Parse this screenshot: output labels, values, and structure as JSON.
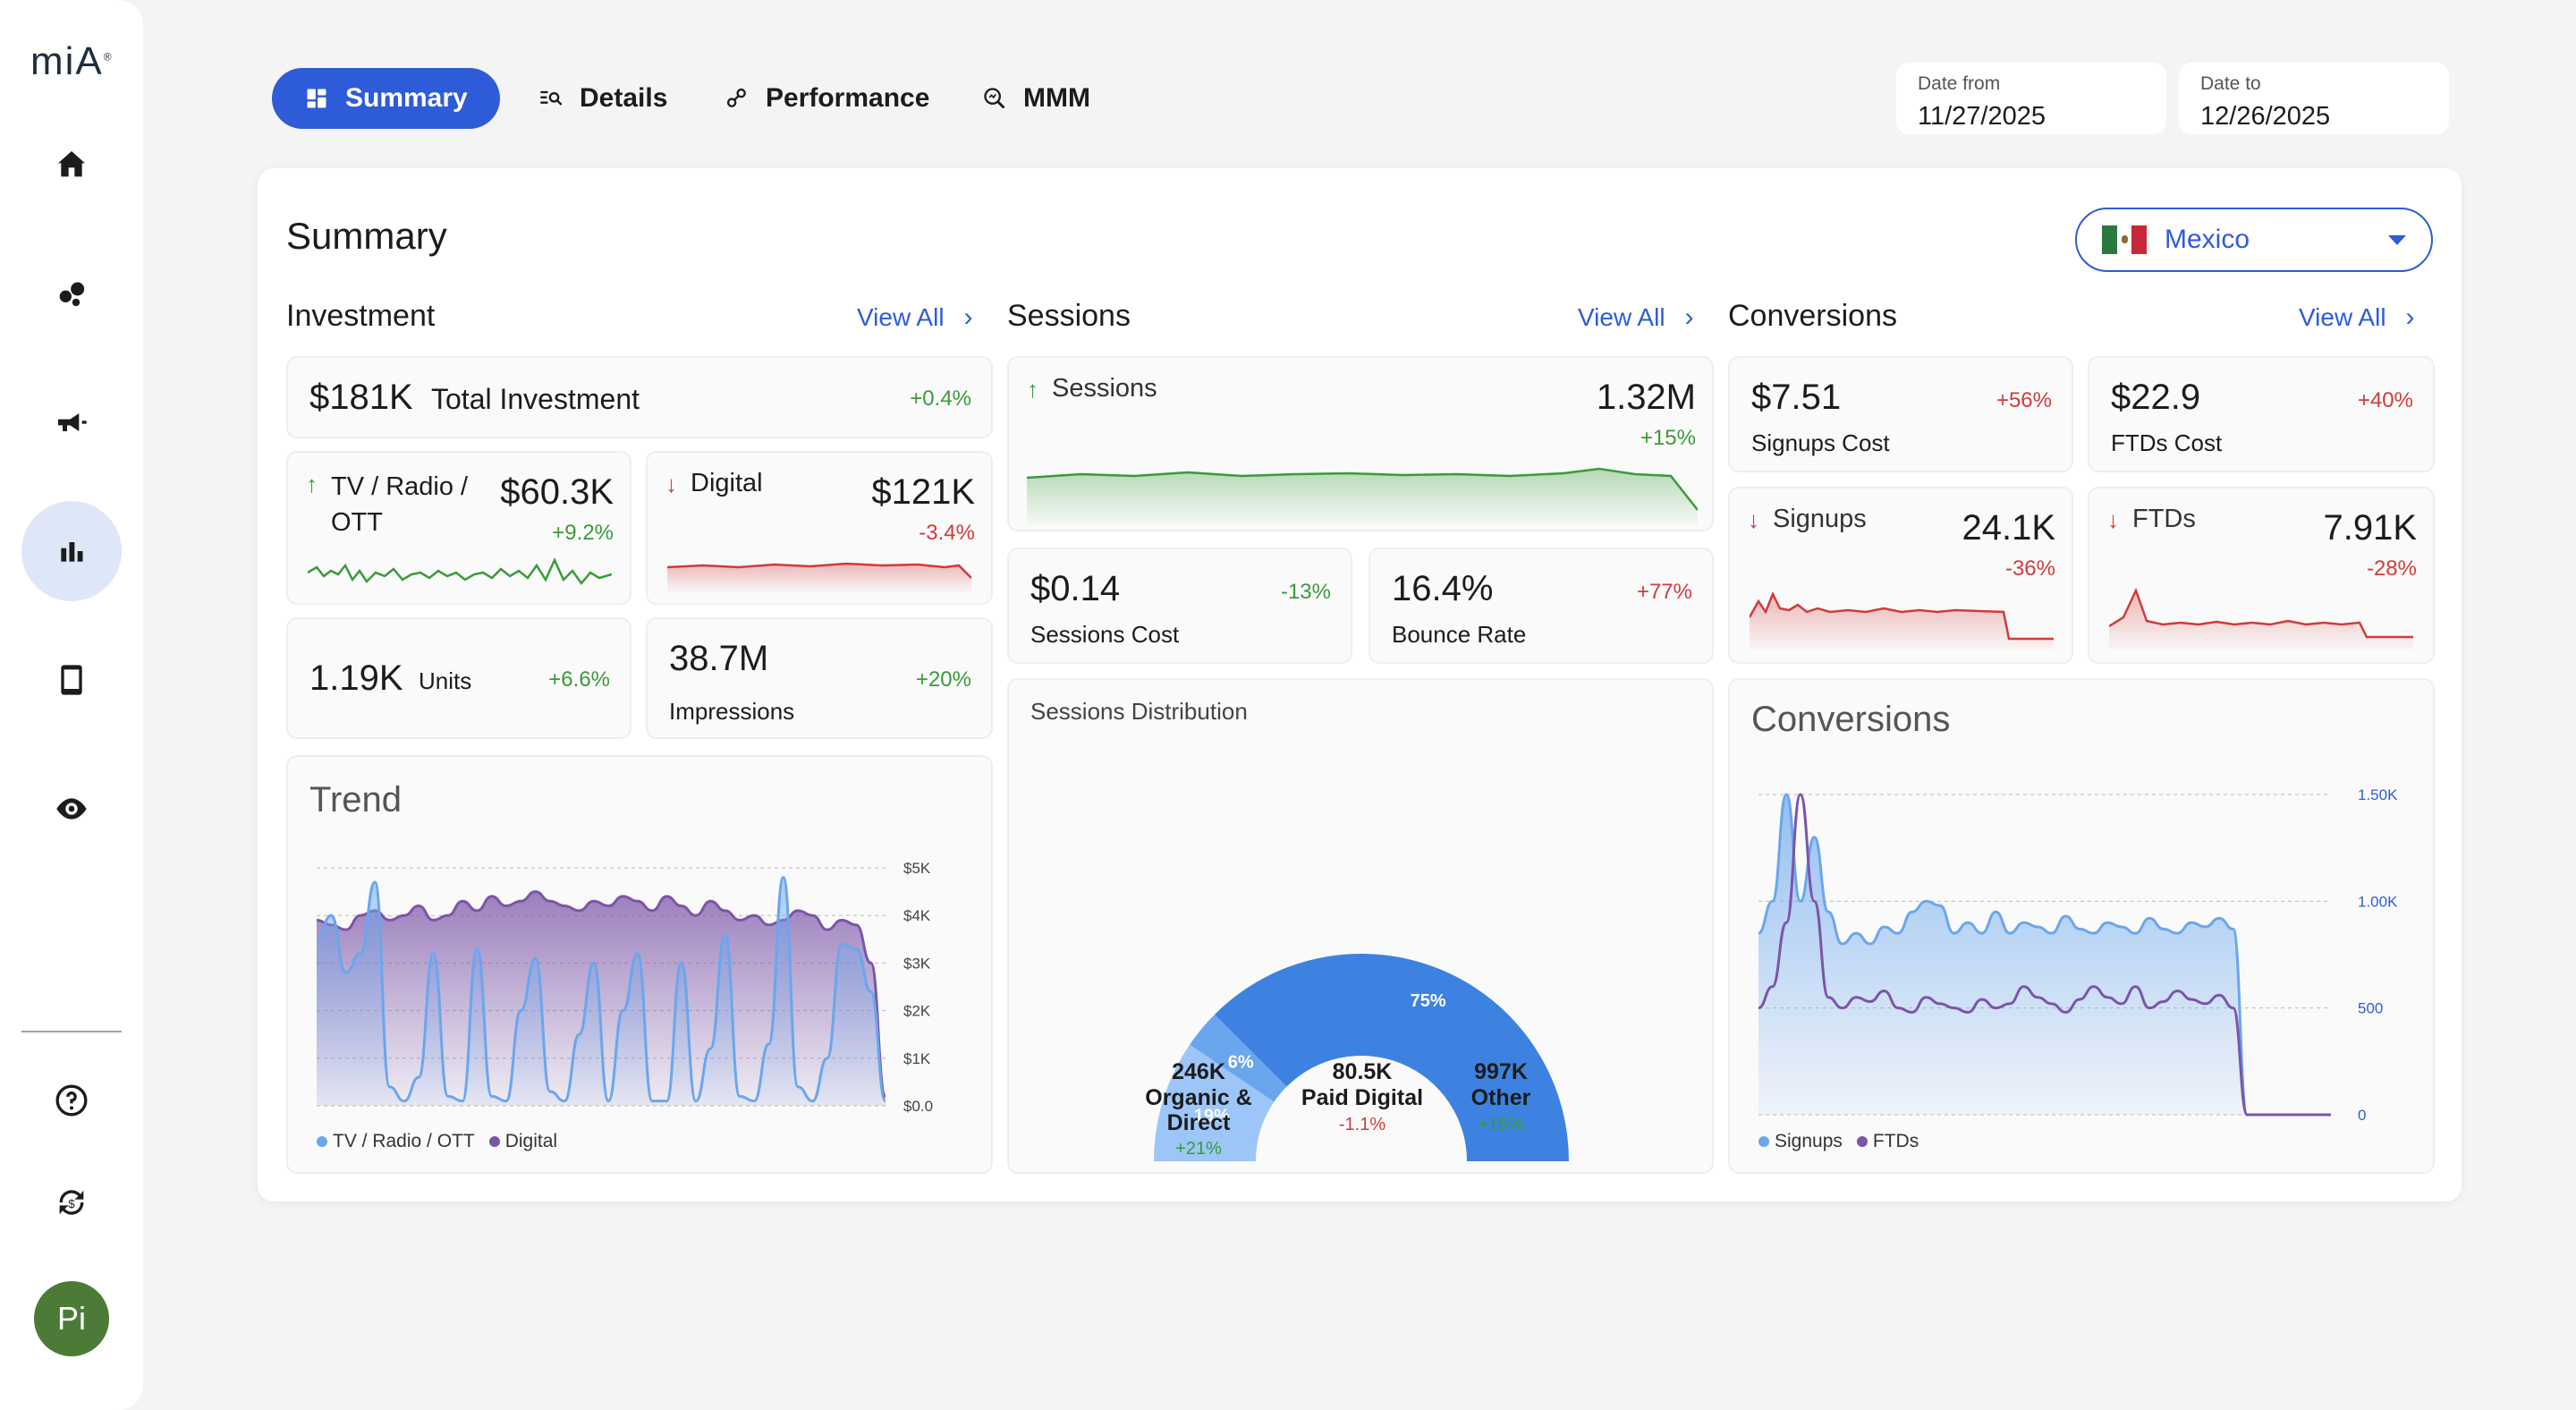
{
  "sidebar": {
    "logo": "miA",
    "icons": [
      "home-icon",
      "bubbles-icon",
      "megaphone-icon",
      "bar-chart-icon",
      "phone-icon",
      "eye-icon",
      "help-icon",
      "sync-icon"
    ],
    "avatar": "Pi"
  },
  "tabs": [
    {
      "label": "Summary",
      "icon": "dashboard-icon"
    },
    {
      "label": "Details",
      "icon": "list-search-icon"
    },
    {
      "label": "Performance",
      "icon": "nodes-icon"
    },
    {
      "label": "MMM",
      "icon": "magnifier-icon"
    }
  ],
  "date_from": {
    "label": "Date from",
    "value": "11/27/2025"
  },
  "date_to": {
    "label": "Date to",
    "value": "12/26/2025"
  },
  "panel": {
    "title": "Summary",
    "country": "Mexico"
  },
  "view_all": "View All",
  "investment": {
    "title": "Investment",
    "total_value": "$181K",
    "total_label": "Total Investment",
    "total_change": "+0.4%",
    "tv_label": "TV / Radio / OTT",
    "tv_value": "$60.3K",
    "tv_change": "+9.2%",
    "digital_label": "Digital",
    "digital_value": "$121K",
    "digital_change": "-3.4%",
    "units_value": "1.19K",
    "units_label": "Units",
    "units_change": "+6.6%",
    "impr_value": "38.7M",
    "impr_label": "Impressions",
    "impr_change": "+20%"
  },
  "sessions": {
    "title": "Sessions",
    "sessions_label": "Sessions",
    "sessions_value": "1.32M",
    "sessions_change": "+15%",
    "cost_value": "$0.14",
    "cost_label": "Sessions Cost",
    "cost_change": "-13%",
    "bounce_value": "16.4%",
    "bounce_label": "Bounce Rate",
    "bounce_change": "+77%",
    "dist_title": "Sessions Distribution",
    "dist": [
      {
        "value": "246K",
        "label": "Organic &\nDirect",
        "change": "+21%",
        "pct": "19%",
        "share": 19,
        "color": "#9cc6f7"
      },
      {
        "value": "80.5K",
        "label": "Paid Digital",
        "change": "-1.1%",
        "pct": "6%",
        "share": 6,
        "color": "#6aa6ee"
      },
      {
        "value": "997K",
        "label": "Other",
        "change": "+15%",
        "pct": "75%",
        "share": 75,
        "color": "#3d82e0"
      }
    ]
  },
  "conversions": {
    "title": "Conversions",
    "signups_cost_value": "$7.51",
    "signups_cost_label": "Signups Cost",
    "signups_cost_change": "+56%",
    "ftds_cost_value": "$22.9",
    "ftds_cost_label": "FTDs Cost",
    "ftds_cost_change": "+40%",
    "signups_label": "Signups",
    "signups_value": "24.1K",
    "signups_change": "-36%",
    "ftds_label": "FTDs",
    "ftds_value": "7.91K",
    "ftds_change": "-28%"
  },
  "chart_data": [
    {
      "type": "area",
      "title": "Trend",
      "y_ticks": [
        "$5K",
        "$4K",
        "$3K",
        "$2K",
        "$1K",
        "$0.0"
      ],
      "ylim": [
        0,
        5000
      ],
      "series": [
        {
          "name": "TV / Radio / OTT",
          "color": "#6aa6ee",
          "values": [
            3500,
            4000,
            2800,
            3200,
            4700,
            400,
            100,
            600,
            3200,
            200,
            100,
            3300,
            200,
            100,
            2000,
            3100,
            300,
            100,
            1500,
            3000,
            100,
            2000,
            3200,
            100,
            100,
            3000,
            100,
            1200,
            3600,
            200,
            100,
            1300,
            4800,
            400,
            100,
            1000,
            3400,
            3300,
            2400,
            100
          ]
        },
        {
          "name": "Digital",
          "color": "#7b55a8",
          "values": [
            3900,
            3800,
            3700,
            4000,
            4100,
            3900,
            4000,
            4200,
            3900,
            4000,
            4300,
            4100,
            4400,
            4200,
            4300,
            4500,
            4300,
            4200,
            4100,
            4300,
            4200,
            4400,
            4300,
            4100,
            4400,
            4200,
            4000,
            4300,
            4100,
            3900,
            4000,
            3800,
            3900,
            4100,
            4000,
            3700,
            3900,
            3800,
            3000,
            200
          ]
        }
      ]
    },
    {
      "type": "area",
      "title": "Conversions",
      "y_ticks": [
        "1.50K",
        "1.00K",
        "500",
        "0"
      ],
      "ylim": [
        0,
        1500
      ],
      "series": [
        {
          "name": "Signups",
          "color": "#6aa6ee",
          "values": [
            850,
            1000,
            1600,
            1000,
            1300,
            950,
            800,
            850,
            800,
            880,
            850,
            950,
            1000,
            980,
            850,
            900,
            850,
            950,
            850,
            900,
            880,
            850,
            930,
            870,
            850,
            900,
            880,
            850,
            920,
            870,
            850,
            900,
            880,
            920,
            870,
            0,
            0,
            0,
            0,
            0,
            0,
            0
          ]
        },
        {
          "name": "FTDs",
          "color": "#7b55a8",
          "values": [
            500,
            600,
            900,
            1600,
            1000,
            550,
            500,
            550,
            530,
            580,
            500,
            480,
            550,
            520,
            500,
            480,
            540,
            500,
            520,
            600,
            550,
            520,
            480,
            540,
            600,
            550,
            520,
            600,
            500,
            530,
            580,
            540,
            520,
            560,
            500,
            0,
            0,
            0,
            0,
            0,
            0,
            0
          ]
        }
      ]
    }
  ]
}
